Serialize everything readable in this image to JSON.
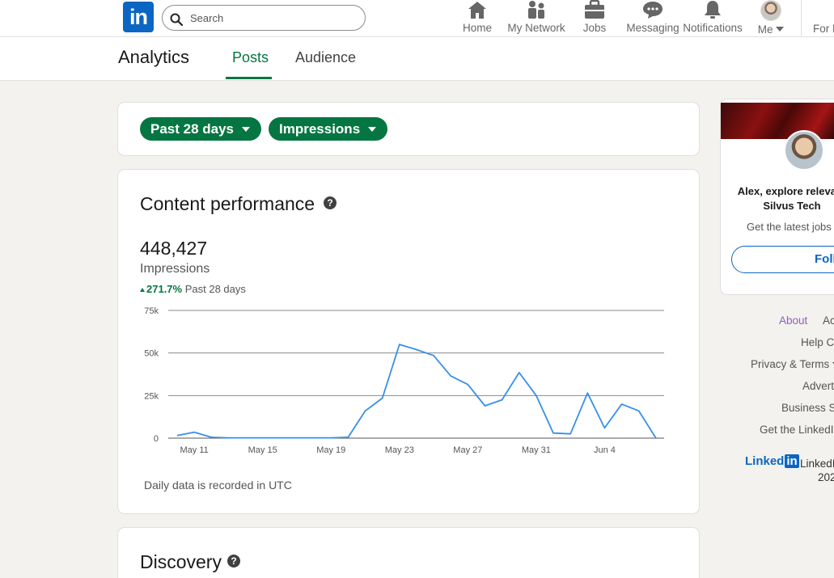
{
  "nav": {
    "search_placeholder": "Search",
    "items": [
      {
        "label": "Home",
        "icon": "home-icon"
      },
      {
        "label": "My Network",
        "icon": "network-icon"
      },
      {
        "label": "Jobs",
        "icon": "briefcase-icon"
      },
      {
        "label": "Messaging",
        "icon": "chat-icon"
      },
      {
        "label": "Notifications",
        "icon": "bell-icon"
      },
      {
        "label": "Me",
        "icon": "avatar"
      }
    ],
    "for_business": "For B"
  },
  "subheader": {
    "title": "Analytics",
    "tabs": [
      {
        "label": "Posts",
        "active": true
      },
      {
        "label": "Audience",
        "active": false
      }
    ]
  },
  "filters": {
    "range": "Past 28 days",
    "metric": "Impressions"
  },
  "performance": {
    "title": "Content performance",
    "metric_value": "448,427",
    "metric_label": "Impressions",
    "delta": "271.7%",
    "delta_period": "Past 28 days",
    "note": "Daily data is recorded in UTC"
  },
  "chart_data": {
    "type": "line",
    "x": [
      "May 10",
      "May 11",
      "May 12",
      "May 13",
      "May 14",
      "May 15",
      "May 16",
      "May 17",
      "May 18",
      "May 19",
      "May 20",
      "May 21",
      "May 22",
      "May 23",
      "May 24",
      "May 25",
      "May 26",
      "May 27",
      "May 28",
      "May 29",
      "May 30",
      "May 31",
      "Jun 1",
      "Jun 2",
      "Jun 3",
      "Jun 4",
      "Jun 5",
      "Jun 6",
      "Jun 7"
    ],
    "values": [
      1500,
      3500,
      500,
      200,
      200,
      200,
      200,
      200,
      200,
      200,
      500,
      16000,
      23500,
      55000,
      52000,
      48500,
      36500,
      31500,
      19000,
      22500,
      38500,
      25000,
      3000,
      2500,
      26500,
      6000,
      20000,
      16000,
      0
    ],
    "x_tick_labels": [
      "May 11",
      "May 15",
      "May 19",
      "May 23",
      "May 27",
      "May 31",
      "Jun 4"
    ],
    "y_tick_labels": [
      "0",
      "25k",
      "50k",
      "75k"
    ],
    "ylim": [
      0,
      75000
    ],
    "grid": true,
    "color": "#378fe9"
  },
  "discovery": {
    "title": "Discovery"
  },
  "promo": {
    "text": "Alex, explore relevant Silvus Tech",
    "sub": "Get the latest jobs a",
    "button": "Follo"
  },
  "footer": {
    "links": [
      "About",
      "Ac",
      "Help C",
      "Privacy & Terms",
      "Advert",
      "Business Se",
      "Get the LinkedI"
    ],
    "logo_text": "Linked",
    "logo_in": "in",
    "copy_line1": "LinkedI",
    "copy_line2": "202"
  },
  "colors": {
    "brand": "#0a66c2",
    "green": "#057642",
    "background": "#f3f2ef"
  }
}
